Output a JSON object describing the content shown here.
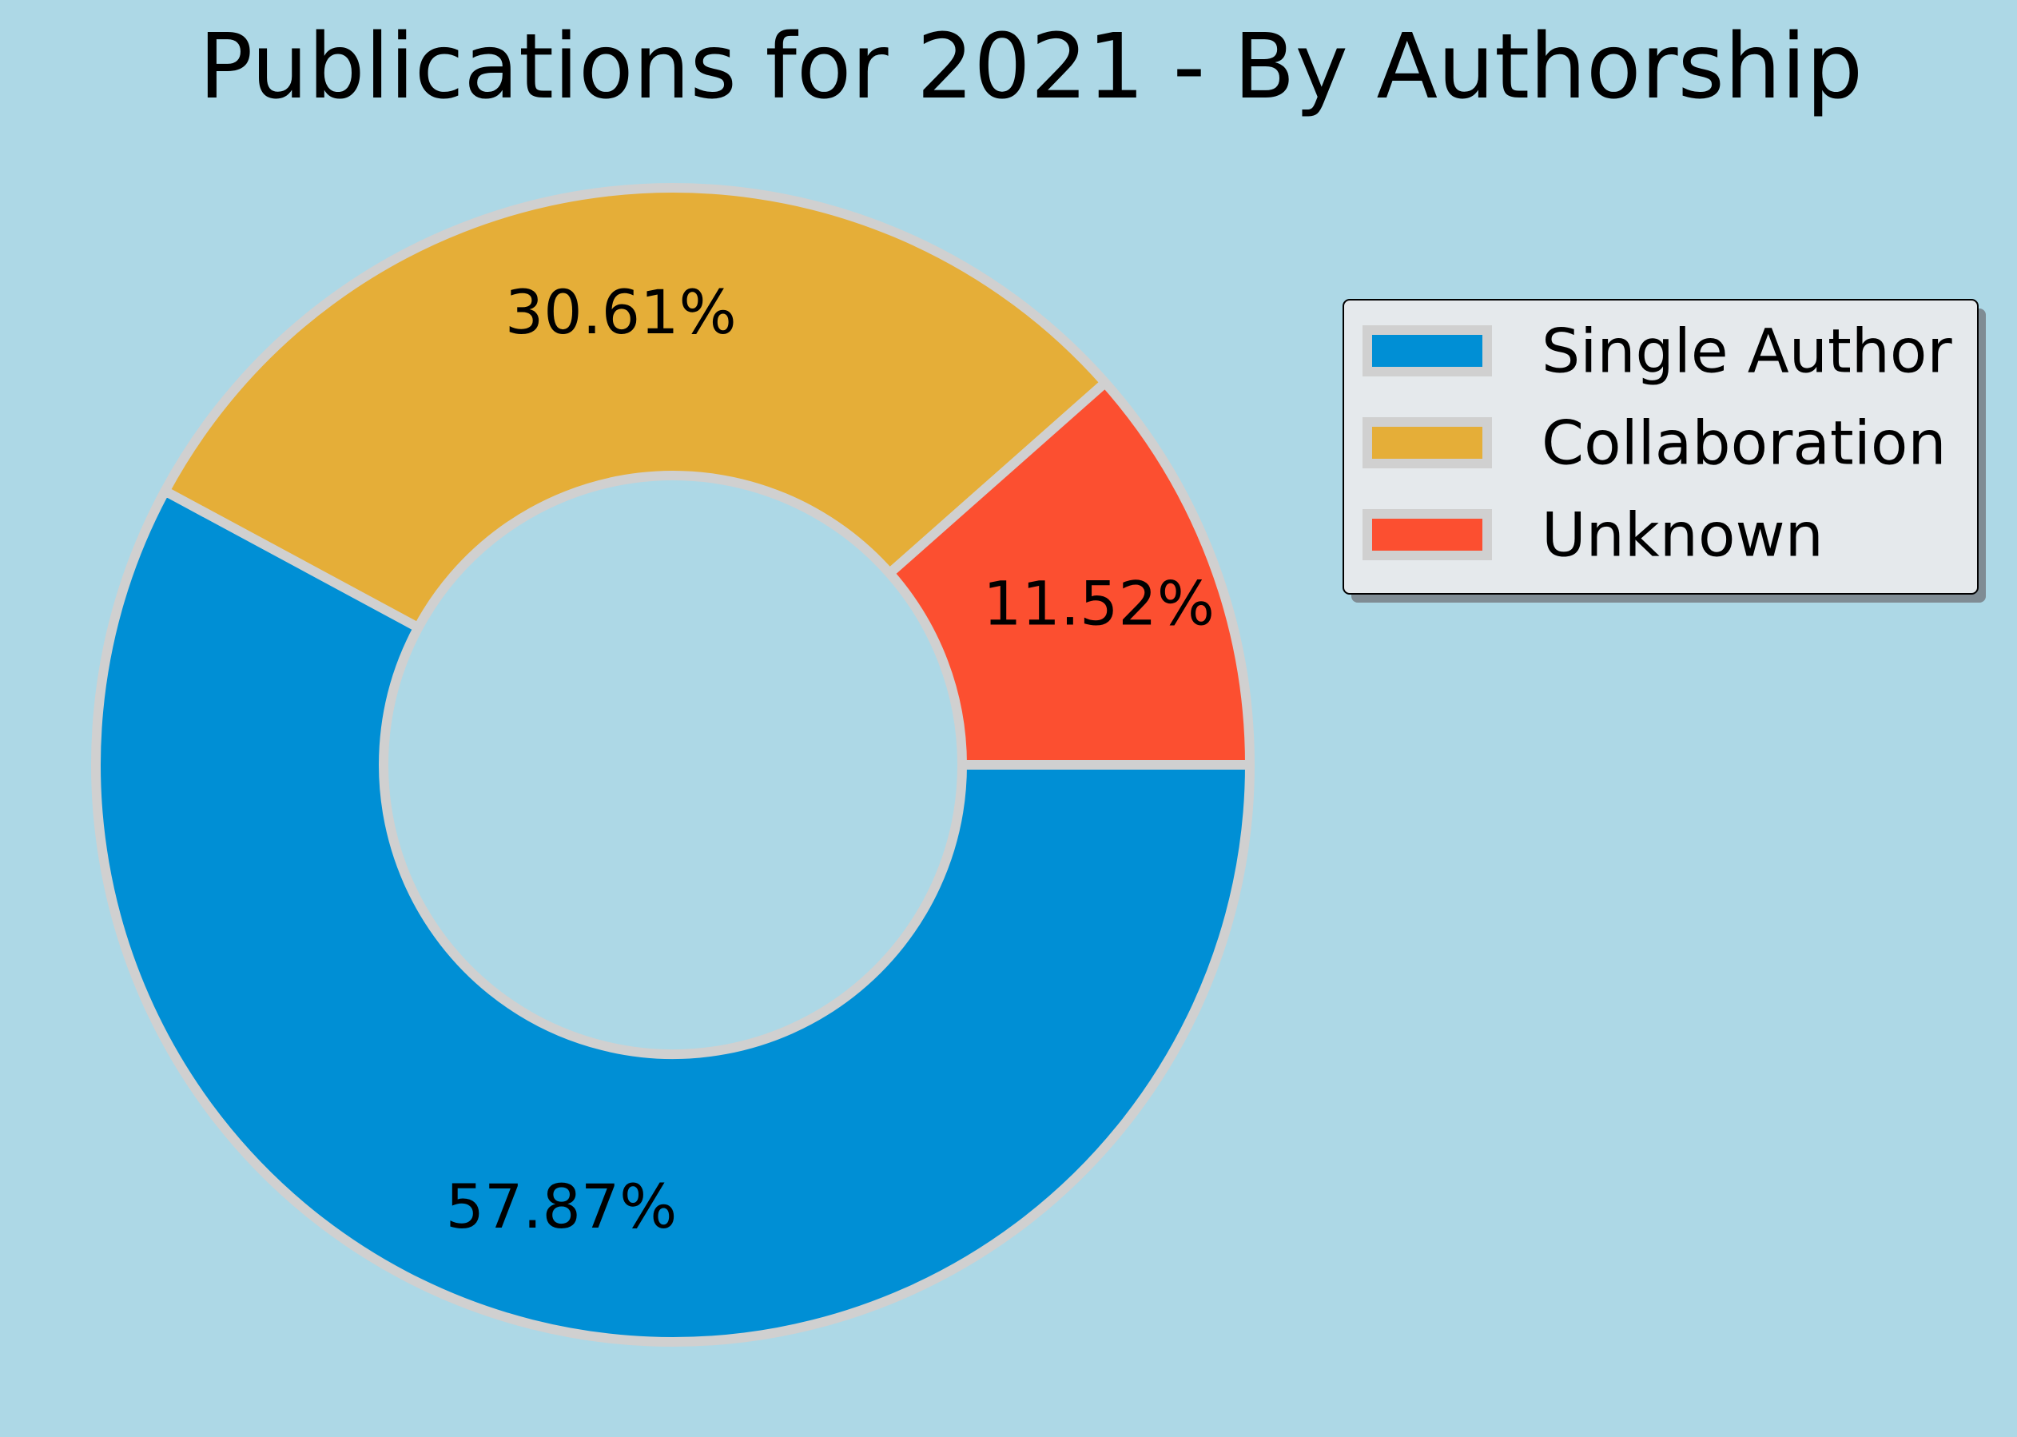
{
  "chart_data": {
    "type": "pie",
    "variant": "donut",
    "title": "Publications for 2021 - By Authorship",
    "categories": [
      "Single Author",
      "Collaboration",
      "Unknown"
    ],
    "values": [
      57.87,
      30.61,
      11.52
    ],
    "labels": [
      "57.87%",
      "30.61%",
      "11.52%"
    ],
    "colors": [
      "#008fd5",
      "#e5ae38",
      "#fc4f30"
    ],
    "edge_color": "#d0d0d0",
    "background_color": "#add8e6",
    "start_angle_deg": 0,
    "direction": "clockwise",
    "legend_position": "top-right"
  }
}
